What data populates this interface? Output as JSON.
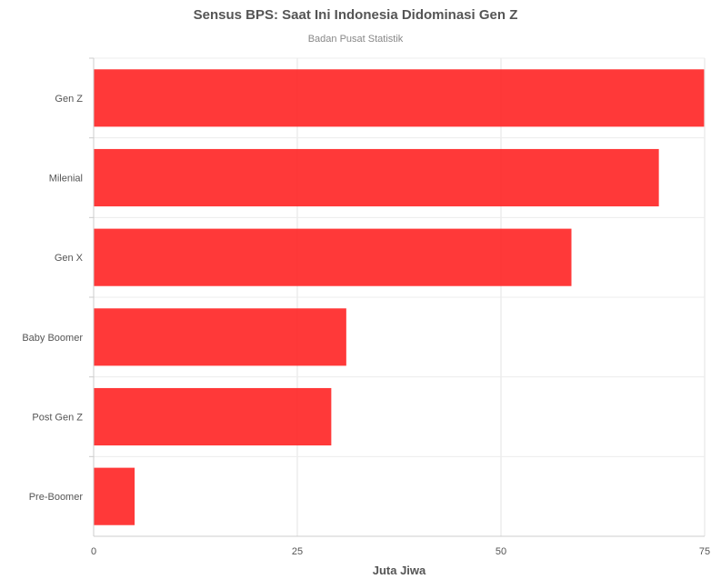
{
  "chart_data": {
    "type": "bar",
    "orientation": "horizontal",
    "title": "Sensus BPS: Saat Ini Indonesia Didominasi Gen Z",
    "subtitle": "Badan Pusat Statistik",
    "xlabel": "Juta Jiwa",
    "ylabel": "",
    "categories": [
      "Gen Z",
      "Milenial",
      "Gen X",
      "Baby Boomer",
      "Post Gen Z",
      "Pre-Boomer"
    ],
    "values": [
      74.93,
      69.38,
      58.65,
      31.01,
      29.17,
      5.03
    ],
    "xlim": [
      0,
      75
    ],
    "xticks": [
      0,
      25,
      50,
      75
    ],
    "grid": true,
    "bar_color": "#ff3333"
  }
}
